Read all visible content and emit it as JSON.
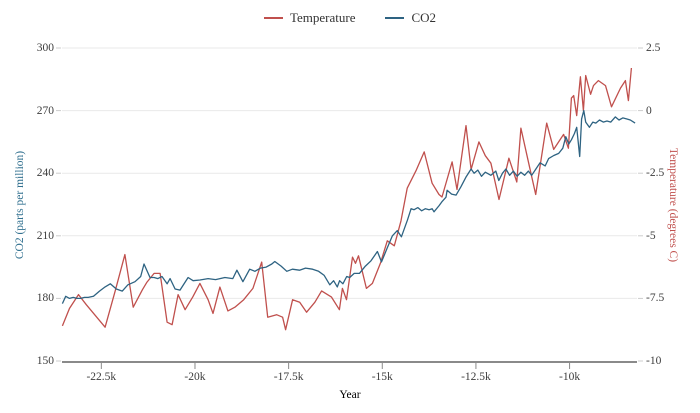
{
  "chart_data": {
    "type": "line",
    "title": "",
    "grid": true,
    "legend_position": "top-center",
    "x_axis": {
      "label": "Year",
      "range": [
        -23550,
        -8200
      ],
      "ticks": [
        {
          "value": -22500,
          "label": "-22.5k"
        },
        {
          "value": -20000,
          "label": "-20k"
        },
        {
          "value": -17500,
          "label": "-17.5k"
        },
        {
          "value": -15000,
          "label": "-15k"
        },
        {
          "value": -12500,
          "label": "-12.5k"
        },
        {
          "value": -10000,
          "label": "-10k"
        }
      ]
    },
    "y_axis_left": {
      "label": "CO2 (parts per million)",
      "color": "#31708f",
      "range": [
        150,
        300
      ],
      "ticks": [
        300,
        270,
        240,
        210,
        180,
        150
      ]
    },
    "y_axis_right": {
      "label": "Temperature (degrees C)",
      "color": "#c0504d",
      "range": [
        -10,
        2.5
      ],
      "ticks": [
        "2.5",
        "0",
        "-2.5",
        "-5",
        "-7.5",
        "-10"
      ]
    },
    "colors": {
      "temperature": "#c0504d",
      "co2": "#2e6382",
      "grid": "#e9e9e9",
      "axis_line": "#8a8a8a",
      "side_tick": "#cccccc",
      "tick_text": "#3d3d3d"
    },
    "series": [
      {
        "name": "Temperature",
        "axis": "right",
        "color": "#c0504d",
        "points": [
          [
            -23540,
            -8.6
          ],
          [
            -23350,
            -7.9
          ],
          [
            -23110,
            -7.35
          ],
          [
            -22900,
            -7.75
          ],
          [
            -22650,
            -8.2
          ],
          [
            -22400,
            -8.65
          ],
          [
            -22130,
            -7.2
          ],
          [
            -21870,
            -5.75
          ],
          [
            -21650,
            -7.85
          ],
          [
            -21400,
            -7.15
          ],
          [
            -21280,
            -6.85
          ],
          [
            -21090,
            -6.5
          ],
          [
            -20930,
            -6.5
          ],
          [
            -20745,
            -8.45
          ],
          [
            -20610,
            -8.55
          ],
          [
            -20450,
            -7.35
          ],
          [
            -20265,
            -7.95
          ],
          [
            -20060,
            -7.45
          ],
          [
            -19870,
            -6.9
          ],
          [
            -19650,
            -7.55
          ],
          [
            -19520,
            -8.1
          ],
          [
            -19335,
            -7.05
          ],
          [
            -19120,
            -8.0
          ],
          [
            -18935,
            -7.85
          ],
          [
            -18700,
            -7.55
          ],
          [
            -18455,
            -7.1
          ],
          [
            -18220,
            -6.05
          ],
          [
            -18060,
            -8.25
          ],
          [
            -17820,
            -8.15
          ],
          [
            -17660,
            -8.25
          ],
          [
            -17580,
            -8.75
          ],
          [
            -17395,
            -7.55
          ],
          [
            -17205,
            -7.65
          ],
          [
            -17020,
            -8.05
          ],
          [
            -16800,
            -7.65
          ],
          [
            -16620,
            -7.2
          ],
          [
            -16355,
            -7.45
          ],
          [
            -16145,
            -7.95
          ],
          [
            -16065,
            -7.1
          ],
          [
            -15955,
            -7.55
          ],
          [
            -15795,
            -5.85
          ],
          [
            -15715,
            -6.1
          ],
          [
            -15635,
            -5.8
          ],
          [
            -15425,
            -7.1
          ],
          [
            -15265,
            -6.9
          ],
          [
            -15050,
            -6.1
          ],
          [
            -14865,
            -5.2
          ],
          [
            -14680,
            -5.4
          ],
          [
            -14500,
            -4.4
          ],
          [
            -14335,
            -3.1
          ],
          [
            -14100,
            -2.4
          ],
          [
            -13880,
            -1.65
          ],
          [
            -13670,
            -2.9
          ],
          [
            -13485,
            -3.35
          ],
          [
            -13405,
            -3.45
          ],
          [
            -13135,
            -2.05
          ],
          [
            -13005,
            -3.15
          ],
          [
            -12765,
            -0.6
          ],
          [
            -12630,
            -2.35
          ],
          [
            -12420,
            -1.25
          ],
          [
            -12250,
            -1.8
          ],
          [
            -12100,
            -2.1
          ],
          [
            -11885,
            -3.55
          ],
          [
            -11620,
            -1.9
          ],
          [
            -11410,
            -2.85
          ],
          [
            -11300,
            -0.7
          ],
          [
            -11090,
            -2.1
          ],
          [
            -10905,
            -3.35
          ],
          [
            -10610,
            -0.5
          ],
          [
            -10425,
            -1.55
          ],
          [
            -10160,
            -0.95
          ],
          [
            -10030,
            -1.5
          ],
          [
            -9950,
            0.5
          ],
          [
            -9890,
            0.6
          ],
          [
            -9810,
            -0.2
          ],
          [
            -9710,
            1.35
          ],
          [
            -9630,
            0.0
          ],
          [
            -9570,
            1.4
          ],
          [
            -9440,
            0.65
          ],
          [
            -9360,
            1.0
          ],
          [
            -9230,
            1.2
          ],
          [
            -9040,
            1.0
          ],
          [
            -8880,
            0.15
          ],
          [
            -8640,
            0.9
          ],
          [
            -8510,
            1.2
          ],
          [
            -8430,
            0.4
          ],
          [
            -8350,
            1.7
          ]
        ]
      },
      {
        "name": "CO2",
        "axis": "left",
        "color": "#2e6382",
        "points": [
          [
            -23540,
            177.5
          ],
          [
            -23450,
            181
          ],
          [
            -23350,
            180
          ],
          [
            -23250,
            180.5
          ],
          [
            -23150,
            180
          ],
          [
            -23050,
            180
          ],
          [
            -22950,
            180.5
          ],
          [
            -22850,
            180.5
          ],
          [
            -22710,
            181
          ],
          [
            -22550,
            183.5
          ],
          [
            -22400,
            185.5
          ],
          [
            -22260,
            187
          ],
          [
            -22100,
            184.5
          ],
          [
            -21940,
            183.5
          ],
          [
            -21790,
            186.5
          ],
          [
            -21600,
            188
          ],
          [
            -21450,
            190.5
          ],
          [
            -21360,
            196.5
          ],
          [
            -21200,
            190
          ],
          [
            -21090,
            190
          ],
          [
            -20990,
            189.5
          ],
          [
            -20880,
            190.5
          ],
          [
            -20745,
            187
          ],
          [
            -20665,
            189.5
          ],
          [
            -20530,
            184.5
          ],
          [
            -20400,
            184
          ],
          [
            -20185,
            190
          ],
          [
            -20050,
            188.5
          ],
          [
            -19870,
            188.8
          ],
          [
            -19650,
            189.5
          ],
          [
            -19450,
            189
          ],
          [
            -19200,
            190
          ],
          [
            -18990,
            189.5
          ],
          [
            -18880,
            193.5
          ],
          [
            -18720,
            188
          ],
          [
            -18540,
            194
          ],
          [
            -18400,
            193
          ],
          [
            -18250,
            194.5
          ],
          [
            -18100,
            195
          ],
          [
            -17950,
            196.5
          ],
          [
            -17870,
            197.7
          ],
          [
            -17700,
            195.5
          ],
          [
            -17550,
            193
          ],
          [
            -17400,
            194
          ],
          [
            -17210,
            193.5
          ],
          [
            -17050,
            194.5
          ],
          [
            -16860,
            194
          ],
          [
            -16700,
            193
          ],
          [
            -16550,
            191
          ],
          [
            -16400,
            186.5
          ],
          [
            -16300,
            188.5
          ],
          [
            -16200,
            185.5
          ],
          [
            -16140,
            188.5
          ],
          [
            -16050,
            187
          ],
          [
            -15950,
            190.5
          ],
          [
            -15870,
            190
          ],
          [
            -15750,
            192
          ],
          [
            -15610,
            192
          ],
          [
            -15450,
            195.5
          ],
          [
            -15300,
            198
          ],
          [
            -15130,
            202.5
          ],
          [
            -15020,
            197.5
          ],
          [
            -14870,
            204
          ],
          [
            -14730,
            210
          ],
          [
            -14600,
            212.5
          ],
          [
            -14490,
            209.5
          ],
          [
            -14330,
            217.5
          ],
          [
            -14230,
            223
          ],
          [
            -14150,
            222.5
          ],
          [
            -14050,
            223.5
          ],
          [
            -13950,
            222
          ],
          [
            -13850,
            223
          ],
          [
            -13750,
            222.5
          ],
          [
            -13670,
            223
          ],
          [
            -13620,
            221.5
          ],
          [
            -13480,
            224.5
          ],
          [
            -13400,
            226.5
          ],
          [
            -13300,
            228.5
          ],
          [
            -13270,
            231.8
          ],
          [
            -13150,
            230
          ],
          [
            -13030,
            229.5
          ],
          [
            -12900,
            233.5
          ],
          [
            -12770,
            238
          ],
          [
            -12630,
            242
          ],
          [
            -12550,
            240
          ],
          [
            -12450,
            241.5
          ],
          [
            -12350,
            238.5
          ],
          [
            -12250,
            240.5
          ],
          [
            -12100,
            239
          ],
          [
            -11970,
            241
          ],
          [
            -11890,
            236.5
          ],
          [
            -11790,
            240
          ],
          [
            -11700,
            242
          ],
          [
            -11600,
            239
          ],
          [
            -11500,
            241
          ],
          [
            -11400,
            238.5
          ],
          [
            -11300,
            240.5
          ],
          [
            -11200,
            239
          ],
          [
            -11100,
            241
          ],
          [
            -11010,
            239
          ],
          [
            -10900,
            242
          ],
          [
            -10790,
            245
          ],
          [
            -10650,
            243.5
          ],
          [
            -10560,
            247
          ],
          [
            -10420,
            248.5
          ],
          [
            -10290,
            249.5
          ],
          [
            -10180,
            252
          ],
          [
            -10100,
            257.5
          ],
          [
            -10020,
            254
          ],
          [
            -9950,
            256
          ],
          [
            -9870,
            259
          ],
          [
            -9810,
            262
          ],
          [
            -9730,
            248
          ],
          [
            -9680,
            266
          ],
          [
            -9620,
            270
          ],
          [
            -9570,
            264.5
          ],
          [
            -9470,
            262
          ],
          [
            -9380,
            264.5
          ],
          [
            -9300,
            264
          ],
          [
            -9200,
            265.5
          ],
          [
            -9100,
            264.5
          ],
          [
            -9000,
            265
          ],
          [
            -8900,
            264.5
          ],
          [
            -8780,
            267
          ],
          [
            -8680,
            265.5
          ],
          [
            -8580,
            266.5
          ],
          [
            -8480,
            266
          ],
          [
            -8380,
            265.5
          ],
          [
            -8250,
            264
          ]
        ]
      }
    ]
  }
}
